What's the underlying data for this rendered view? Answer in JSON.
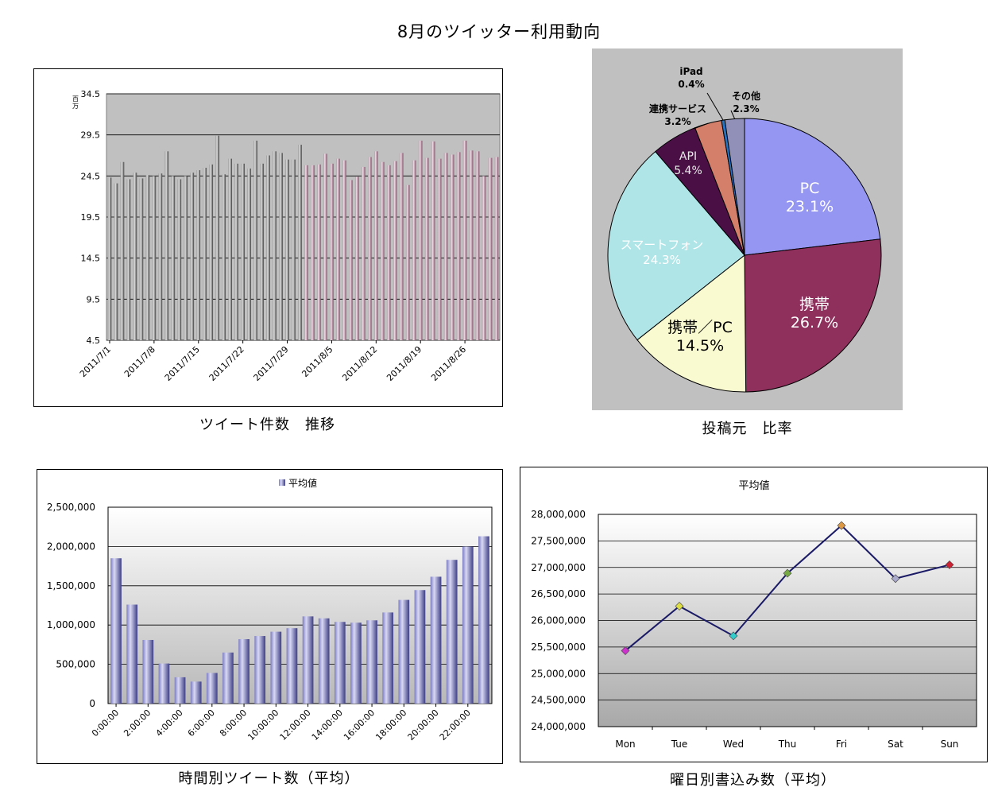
{
  "page_title": "8月のツイッター利用動向",
  "captions": {
    "daily": "ツイート件数　推移",
    "source": "投稿元　比率",
    "hourly": "時間別ツイート数（平均）",
    "weekday": "曜日別書込み数（平均）"
  },
  "chart_data": [
    {
      "type": "bar",
      "id": "daily",
      "unit_label": "百万",
      "ylim": [
        4.5,
        34.5
      ],
      "yticks": [
        4.5,
        9.5,
        14.5,
        19.5,
        24.5,
        29.5,
        34.5
      ],
      "xtick_labels": [
        "2011/7/1",
        "2011/7/8",
        "2011/7/15",
        "2011/7/22",
        "2011/7/29",
        "2011/8/5",
        "2011/8/12",
        "2011/8/19",
        "2011/8/26"
      ],
      "xtick_indices": [
        0,
        7,
        14,
        21,
        28,
        35,
        42,
        49,
        56
      ],
      "series": [
        {
          "values": [
            24.3,
            23.6,
            26.2,
            24.1,
            24.9,
            24.2,
            24.6,
            24.5,
            24.8,
            27.5,
            24.5,
            24.1,
            24.5,
            24.9,
            25.2,
            25.5,
            25.9,
            29.4,
            24.7,
            26.6,
            26.0,
            26.0,
            25.4,
            28.8,
            26.0,
            27.0,
            27.5,
            27.3,
            26.5,
            26.5,
            28.3
          ],
          "colors": [
            "#909090",
            "#e0e0e0",
            "#404040"
          ]
        },
        {
          "values": [
            25.8,
            25.8,
            25.9,
            27.2,
            26.0,
            26.6,
            26.4,
            24.0,
            24.4,
            25.6,
            26.8,
            27.5,
            26.2,
            25.8,
            26.3,
            27.3,
            23.4,
            26.4,
            28.8,
            26.7,
            28.7,
            26.6,
            27.3,
            27.1,
            27.4,
            28.8,
            27.6,
            27.5,
            24.5,
            26.7,
            26.8
          ],
          "colors": [
            "#b88ca3",
            "#f2dde8",
            "#7d4f66"
          ]
        }
      ],
      "grid": true,
      "plot_bg": "#c0c0c0"
    },
    {
      "type": "pie",
      "id": "source",
      "slices": [
        {
          "label": "PC",
          "pct": "23.1%",
          "value": 23.1,
          "color": "#9595f2"
        },
        {
          "label": "携帯",
          "pct": "26.7%",
          "value": 26.7,
          "color": "#8e2f5c"
        },
        {
          "label": "携帯／PC",
          "pct": "14.5%",
          "value": 14.5,
          "color": "#fafad0"
        },
        {
          "label": "スマートフォン",
          "pct": "24.3%",
          "value": 24.3,
          "color": "#b0e5e8"
        },
        {
          "label": "API",
          "pct": "5.4%",
          "value": 5.4,
          "color": "#4a1046"
        },
        {
          "label": "連携サービス",
          "pct": "3.2%",
          "value": 3.2,
          "color": "#d37f6a"
        },
        {
          "label": "iPad",
          "pct": "0.4%",
          "value": 0.4,
          "color": "#2474c6"
        },
        {
          "label": "その他",
          "pct": "2.3%",
          "value": 2.3,
          "color": "#9090b8"
        }
      ],
      "background": "#c0c0c0"
    },
    {
      "type": "bar",
      "id": "hourly",
      "legend": "平均値",
      "legend_position": "top",
      "ylim": [
        0,
        2500000
      ],
      "yticks": [
        0,
        500000,
        1000000,
        1500000,
        2000000,
        2500000
      ],
      "ytick_labels": [
        "0",
        "500,000",
        "1,000,000",
        "1,500,000",
        "2,000,000",
        "2,500,000"
      ],
      "categories": [
        "0:00:00",
        "1:00:00",
        "2:00:00",
        "3:00:00",
        "4:00:00",
        "5:00:00",
        "6:00:00",
        "7:00:00",
        "8:00:00",
        "9:00:00",
        "10:00:00",
        "11:00:00",
        "12:00:00",
        "13:00:00",
        "14:00:00",
        "15:00:00",
        "16:00:00",
        "17:00:00",
        "18:00:00",
        "19:00:00",
        "20:00:00",
        "21:00:00",
        "22:00:00",
        "23:00:00"
      ],
      "xtick_labels": [
        "0:00:00",
        "2:00:00",
        "4:00:00",
        "6:00:00",
        "8:00:00",
        "10:00:00",
        "12:00:00",
        "14:00:00",
        "16:00:00",
        "18:00:00",
        "20:00:00",
        "22:00:00"
      ],
      "xtick_indices": [
        0,
        2,
        4,
        6,
        8,
        10,
        12,
        14,
        16,
        18,
        20,
        22
      ],
      "values": [
        1850000,
        1260000,
        810000,
        510000,
        335000,
        280000,
        390000,
        650000,
        820000,
        860000,
        915000,
        960000,
        1110000,
        1085000,
        1040000,
        1030000,
        1060000,
        1160000,
        1320000,
        1445000,
        1615000,
        1830000,
        2000000,
        2130000
      ],
      "colors": [
        "#7b7bc0",
        "#d9d9f5",
        "#3d3d85"
      ],
      "grid": true
    },
    {
      "type": "line",
      "id": "weekday",
      "title": "平均値",
      "ylim": [
        24000000,
        28000000
      ],
      "yticks": [
        24000000,
        24500000,
        25000000,
        25500000,
        26000000,
        26500000,
        27000000,
        27500000,
        28000000
      ],
      "ytick_labels": [
        "24,000,000",
        "24,500,000",
        "25,000,000",
        "25,500,000",
        "26,000,000",
        "26,500,000",
        "27,000,000",
        "27,500,000",
        "28,000,000"
      ],
      "categories": [
        "Mon",
        "Tue",
        "Wed",
        "Thu",
        "Fri",
        "Sat",
        "Sun"
      ],
      "values": [
        25430000,
        26270000,
        25710000,
        26890000,
        27790000,
        26790000,
        27050000
      ],
      "marker_colors": [
        "#cc33cc",
        "#dddd44",
        "#33cccc",
        "#77aa44",
        "#dd9944",
        "#aaaacc",
        "#cc2233"
      ],
      "line_color": "#1a1a66",
      "grid": true
    }
  ]
}
